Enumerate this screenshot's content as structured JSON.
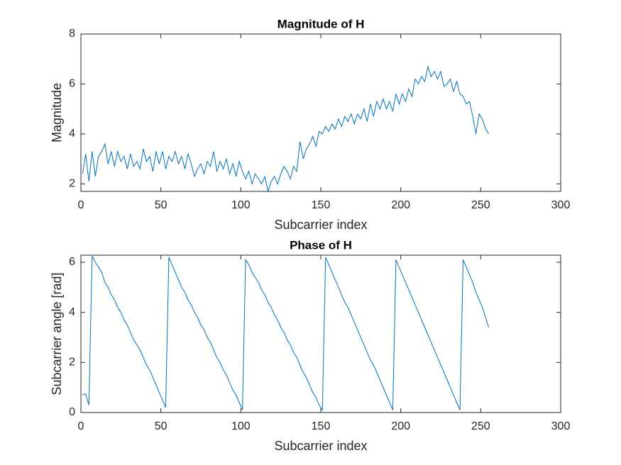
{
  "chart_data": [
    {
      "type": "line",
      "title": "Magnitude of H",
      "x_label": "Subcarrier index",
      "y_label": "Magnitude",
      "color": "#0072bd",
      "xlim": [
        0,
        300
      ],
      "xticks": [
        0,
        50,
        100,
        150,
        200,
        250,
        300
      ],
      "ylim": [
        1.7,
        8
      ],
      "yticks": [
        2,
        4,
        6,
        8
      ],
      "x": [
        1,
        3,
        5,
        7,
        9,
        11,
        13,
        15,
        17,
        19,
        21,
        23,
        25,
        27,
        29,
        31,
        33,
        35,
        37,
        39,
        41,
        43,
        45,
        47,
        49,
        51,
        53,
        55,
        57,
        59,
        61,
        63,
        65,
        67,
        69,
        71,
        73,
        75,
        77,
        79,
        81,
        83,
        85,
        87,
        89,
        91,
        93,
        95,
        97,
        99,
        101,
        103,
        105,
        107,
        109,
        111,
        113,
        115,
        117,
        119,
        121,
        123,
        125,
        127,
        129,
        131,
        133,
        135,
        137,
        139,
        141,
        143,
        145,
        147,
        149,
        151,
        153,
        155,
        157,
        159,
        161,
        163,
        165,
        167,
        169,
        171,
        173,
        175,
        177,
        179,
        181,
        183,
        185,
        187,
        189,
        191,
        193,
        195,
        197,
        199,
        201,
        203,
        205,
        207,
        209,
        211,
        213,
        215,
        217,
        219,
        221,
        223,
        225,
        227,
        229,
        231,
        233,
        235,
        237,
        239,
        241,
        243,
        245,
        247,
        249,
        251,
        253,
        255
      ],
      "values": [
        2.4,
        3.2,
        2.1,
        3.3,
        2.3,
        3.1,
        3.3,
        3.6,
        2.8,
        3.3,
        2.7,
        3.3,
        2.9,
        3.1,
        2.6,
        3.2,
        2.7,
        2.9,
        2.6,
        3.4,
        2.9,
        3.1,
        2.5,
        3.3,
        2.8,
        3.3,
        2.6,
        3.1,
        2.9,
        3.3,
        2.8,
        3.1,
        2.6,
        3.2,
        2.8,
        2.3,
        2.6,
        2.8,
        2.4,
        2.9,
        2.7,
        3.3,
        2.5,
        2.9,
        2.6,
        3.0,
        2.4,
        2.8,
        2.3,
        2.9,
        2.5,
        2.2,
        2.5,
        2.0,
        2.4,
        2.2,
        2.0,
        2.3,
        1.7,
        2.1,
        2.3,
        2.0,
        2.4,
        2.7,
        2.5,
        2.2,
        2.7,
        2.5,
        3.7,
        3.0,
        3.4,
        3.6,
        3.9,
        3.5,
        4.1,
        4.0,
        4.3,
        4.1,
        4.4,
        4.2,
        4.6,
        4.3,
        4.7,
        4.5,
        4.8,
        4.4,
        4.8,
        4.6,
        5.0,
        4.5,
        5.2,
        4.7,
        5.3,
        5.0,
        5.4,
        5.0,
        5.3,
        4.9,
        5.6,
        5.2,
        5.6,
        5.3,
        5.8,
        5.5,
        6.2,
        6.0,
        6.3,
        6.1,
        6.7,
        6.3,
        6.5,
        6.2,
        6.5,
        5.9,
        6.0,
        6.2,
        5.7,
        6.1,
        5.6,
        5.5,
        5.2,
        5.3,
        4.7,
        4.0,
        4.8,
        4.6,
        4.2,
        4.0
      ]
    },
    {
      "type": "line",
      "title": "Phase of H",
      "x_label": "Subcarrier index",
      "y_label": "Subcarrier angle [rad]",
      "color": "#0072bd",
      "xlim": [
        0,
        300
      ],
      "xticks": [
        0,
        50,
        100,
        150,
        200,
        250,
        300
      ],
      "ylim": [
        0,
        6.2832
      ],
      "yticks": [
        0,
        2,
        4,
        6
      ],
      "x": [
        1,
        3,
        5,
        7,
        9,
        11,
        13,
        15,
        17,
        19,
        21,
        23,
        25,
        27,
        29,
        31,
        33,
        35,
        37,
        39,
        41,
        43,
        45,
        47,
        49,
        51,
        53,
        55,
        57,
        59,
        61,
        63,
        65,
        67,
        69,
        71,
        73,
        75,
        77,
        79,
        81,
        83,
        85,
        87,
        89,
        91,
        93,
        95,
        97,
        99,
        101,
        103,
        105,
        107,
        109,
        111,
        113,
        115,
        117,
        119,
        121,
        123,
        125,
        127,
        129,
        131,
        133,
        135,
        137,
        139,
        141,
        143,
        145,
        147,
        149,
        151,
        153,
        155,
        157,
        159,
        161,
        163,
        165,
        167,
        169,
        171,
        173,
        175,
        177,
        179,
        181,
        183,
        185,
        187,
        189,
        191,
        193,
        195,
        197,
        199,
        201,
        203,
        205,
        207,
        209,
        211,
        213,
        215,
        217,
        219,
        221,
        223,
        225,
        227,
        229,
        231,
        233,
        235,
        237,
        239,
        241,
        243,
        245,
        247,
        249,
        251,
        253,
        255
      ],
      "values": [
        0.7,
        0.75,
        0.3,
        6.25,
        6.0,
        5.8,
        5.6,
        5.2,
        5.0,
        4.7,
        4.5,
        4.2,
        4.0,
        3.7,
        3.5,
        3.2,
        2.9,
        2.7,
        2.5,
        2.2,
        1.9,
        1.7,
        1.4,
        1.1,
        0.8,
        0.5,
        0.2,
        6.2,
        5.9,
        5.6,
        5.3,
        5.0,
        4.8,
        4.5,
        4.3,
        4.0,
        3.8,
        3.5,
        3.3,
        3.0,
        2.8,
        2.5,
        2.2,
        2.0,
        1.7,
        1.5,
        1.2,
        0.9,
        0.7,
        0.4,
        0.1,
        6.1,
        5.9,
        5.6,
        5.4,
        5.2,
        4.9,
        4.7,
        4.4,
        4.2,
        3.9,
        3.7,
        3.4,
        3.2,
        2.9,
        2.7,
        2.4,
        2.2,
        1.9,
        1.6,
        1.4,
        1.1,
        0.8,
        0.6,
        0.3,
        0.1,
        6.2,
        5.9,
        5.6,
        5.3,
        5.0,
        4.7,
        4.4,
        4.2,
        3.9,
        3.6,
        3.3,
        3.0,
        2.7,
        2.4,
        2.1,
        1.9,
        1.6,
        1.3,
        1.0,
        0.7,
        0.4,
        0.1,
        6.1,
        5.8,
        5.5,
        5.2,
        4.9,
        4.6,
        4.3,
        4.0,
        3.7,
        3.4,
        3.1,
        2.8,
        2.5,
        2.2,
        1.9,
        1.6,
        1.3,
        1.0,
        0.7,
        0.4,
        0.1,
        6.1,
        5.8,
        5.5,
        5.2,
        4.8,
        4.5,
        4.2,
        3.8,
        3.4
      ]
    }
  ]
}
